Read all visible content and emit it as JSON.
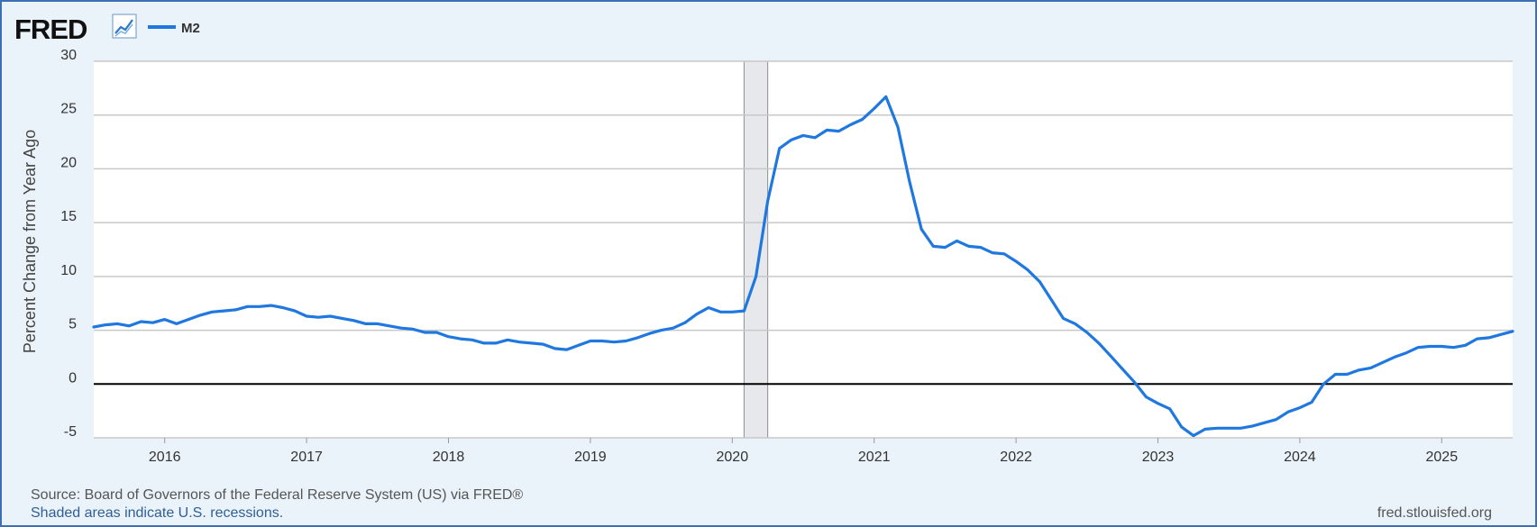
{
  "logo": {
    "text": "FRED",
    "icon": "line-chart-icon"
  },
  "legend": {
    "series_label": "M2",
    "color": "#1f77e0"
  },
  "chart_data": {
    "type": "line",
    "ylabel": "Percent Change from Year Ago",
    "ylim": [
      -5,
      30
    ],
    "yticks": [
      -5,
      0,
      5,
      10,
      15,
      20,
      25,
      30
    ],
    "xlim": [
      2015.5,
      2025.5
    ],
    "xticks": [
      2016,
      2017,
      2018,
      2019,
      2020,
      2021,
      2022,
      2023,
      2024,
      2025
    ],
    "grid": true,
    "zero_line": true,
    "recessions": [
      [
        2020.083,
        2020.25
      ]
    ],
    "series": [
      {
        "name": "M2",
        "color": "#1f77e0",
        "x": [
          2015.5,
          2015.583,
          2015.667,
          2015.75,
          2015.833,
          2015.917,
          2016.0,
          2016.083,
          2016.167,
          2016.25,
          2016.333,
          2016.417,
          2016.5,
          2016.583,
          2016.667,
          2016.75,
          2016.833,
          2016.917,
          2017.0,
          2017.083,
          2017.167,
          2017.25,
          2017.333,
          2017.417,
          2017.5,
          2017.583,
          2017.667,
          2017.75,
          2017.833,
          2017.917,
          2018.0,
          2018.083,
          2018.167,
          2018.25,
          2018.333,
          2018.417,
          2018.5,
          2018.583,
          2018.667,
          2018.75,
          2018.833,
          2018.917,
          2019.0,
          2019.083,
          2019.167,
          2019.25,
          2019.333,
          2019.417,
          2019.5,
          2019.583,
          2019.667,
          2019.75,
          2019.833,
          2019.917,
          2020.0,
          2020.083,
          2020.167,
          2020.25,
          2020.333,
          2020.417,
          2020.5,
          2020.583,
          2020.667,
          2020.75,
          2020.833,
          2020.917,
          2021.0,
          2021.083,
          2021.167,
          2021.25,
          2021.333,
          2021.417,
          2021.5,
          2021.583,
          2021.667,
          2021.75,
          2021.833,
          2021.917,
          2022.0,
          2022.083,
          2022.167,
          2022.25,
          2022.333,
          2022.417,
          2022.5,
          2022.583,
          2022.667,
          2022.75,
          2022.833,
          2022.917,
          2023.0,
          2023.083,
          2023.167,
          2023.25,
          2023.333,
          2023.417,
          2023.5,
          2023.583,
          2023.667,
          2023.75,
          2023.833,
          2023.917,
          2024.0,
          2024.083,
          2024.167,
          2024.25,
          2024.333,
          2024.417,
          2024.5,
          2024.583,
          2024.667,
          2024.75,
          2024.833,
          2024.917,
          2025.0,
          2025.083,
          2025.167,
          2025.25,
          2025.333,
          2025.417,
          2025.5
        ],
        "y": [
          5.3,
          5.5,
          5.6,
          5.4,
          5.8,
          5.7,
          6.0,
          5.6,
          6.0,
          6.4,
          6.7,
          6.8,
          6.9,
          7.2,
          7.2,
          7.3,
          7.1,
          6.8,
          6.3,
          6.2,
          6.3,
          6.1,
          5.9,
          5.6,
          5.6,
          5.4,
          5.2,
          5.1,
          4.8,
          4.8,
          4.4,
          4.2,
          4.1,
          3.8,
          3.8,
          4.1,
          3.9,
          3.8,
          3.7,
          3.3,
          3.2,
          3.6,
          4.0,
          4.0,
          3.9,
          4.0,
          4.3,
          4.7,
          5.0,
          5.2,
          5.7,
          6.5,
          7.1,
          6.7,
          6.7,
          6.8,
          10.0,
          17.0,
          21.9,
          22.7,
          23.1,
          22.9,
          23.6,
          23.5,
          24.1,
          24.6,
          25.6,
          26.7,
          23.9,
          18.8,
          14.4,
          12.8,
          12.7,
          13.3,
          12.8,
          12.7,
          12.2,
          12.1,
          11.4,
          10.6,
          9.5,
          7.8,
          6.1,
          5.6,
          4.8,
          3.8,
          2.6,
          1.4,
          0.2,
          -1.2,
          -1.8,
          -2.3,
          -4.0,
          -4.8,
          -4.2,
          -4.1,
          -4.1,
          -4.1,
          -3.9,
          -3.6,
          -3.3,
          -2.6,
          -2.2,
          -1.7,
          0.0,
          0.9,
          0.9,
          1.3,
          1.5,
          2.0,
          2.5,
          2.9,
          3.4,
          3.5,
          3.5,
          3.4,
          3.6,
          4.2,
          4.3,
          4.6,
          4.9
        ]
      }
    ]
  },
  "footer": {
    "source": "Source: Board of Governors of the Federal Reserve System (US) via FRED®",
    "recession_note": "Shaded areas indicate U.S. recessions.",
    "site": "fred.stlouisfed.org"
  }
}
